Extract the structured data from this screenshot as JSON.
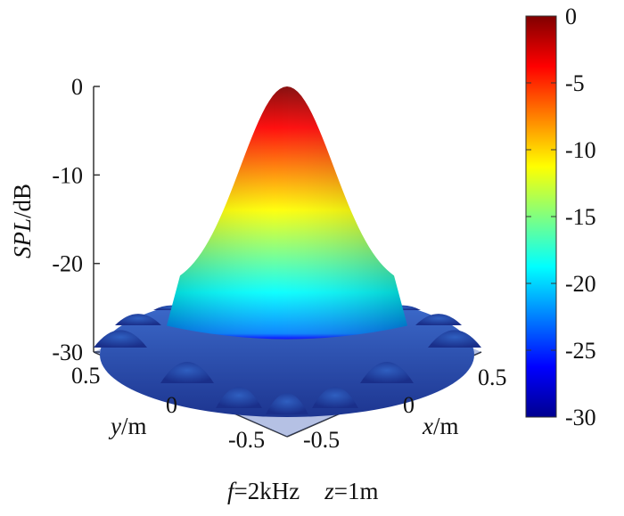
{
  "chart_data": {
    "type": "surface3d",
    "title": "",
    "zlabel": {
      "italic": "SPL",
      "rest": "/dB"
    },
    "xlabel": {
      "italic": "x",
      "rest": "/m"
    },
    "ylabel": {
      "italic": "y",
      "rest": "/m"
    },
    "zlim": [
      -30,
      0
    ],
    "xlim": [
      -0.5,
      0.5
    ],
    "ylim": [
      -0.5,
      0.5
    ],
    "z_ticks": [
      "0",
      "-10",
      "-20",
      "-30"
    ],
    "x_ticks": [
      "-0.5",
      "0",
      "0.5"
    ],
    "y_ticks": [
      "0.5",
      "0",
      "-0.5"
    ],
    "peak": {
      "x": 0,
      "y": 0,
      "z": 0
    },
    "main_lobe_radius": 0.3,
    "side_lobe_level_db": -25,
    "floor_db": -30,
    "colormap": "jet",
    "colorbar": {
      "limits": [
        -30,
        0
      ],
      "ticks": [
        "0",
        "-5",
        "-10",
        "-15",
        "-20",
        "-25",
        "-30"
      ],
      "colors": [
        "#00008f",
        "#0000ff",
        "#0080ff",
        "#00ffff",
        "#80ff80",
        "#ffff00",
        "#ff8000",
        "#ff0000",
        "#800000"
      ]
    },
    "caption": {
      "f_italic": "f",
      "f_value": "=2kHz",
      "z_italic": "z",
      "z_value": "=1m"
    }
  }
}
